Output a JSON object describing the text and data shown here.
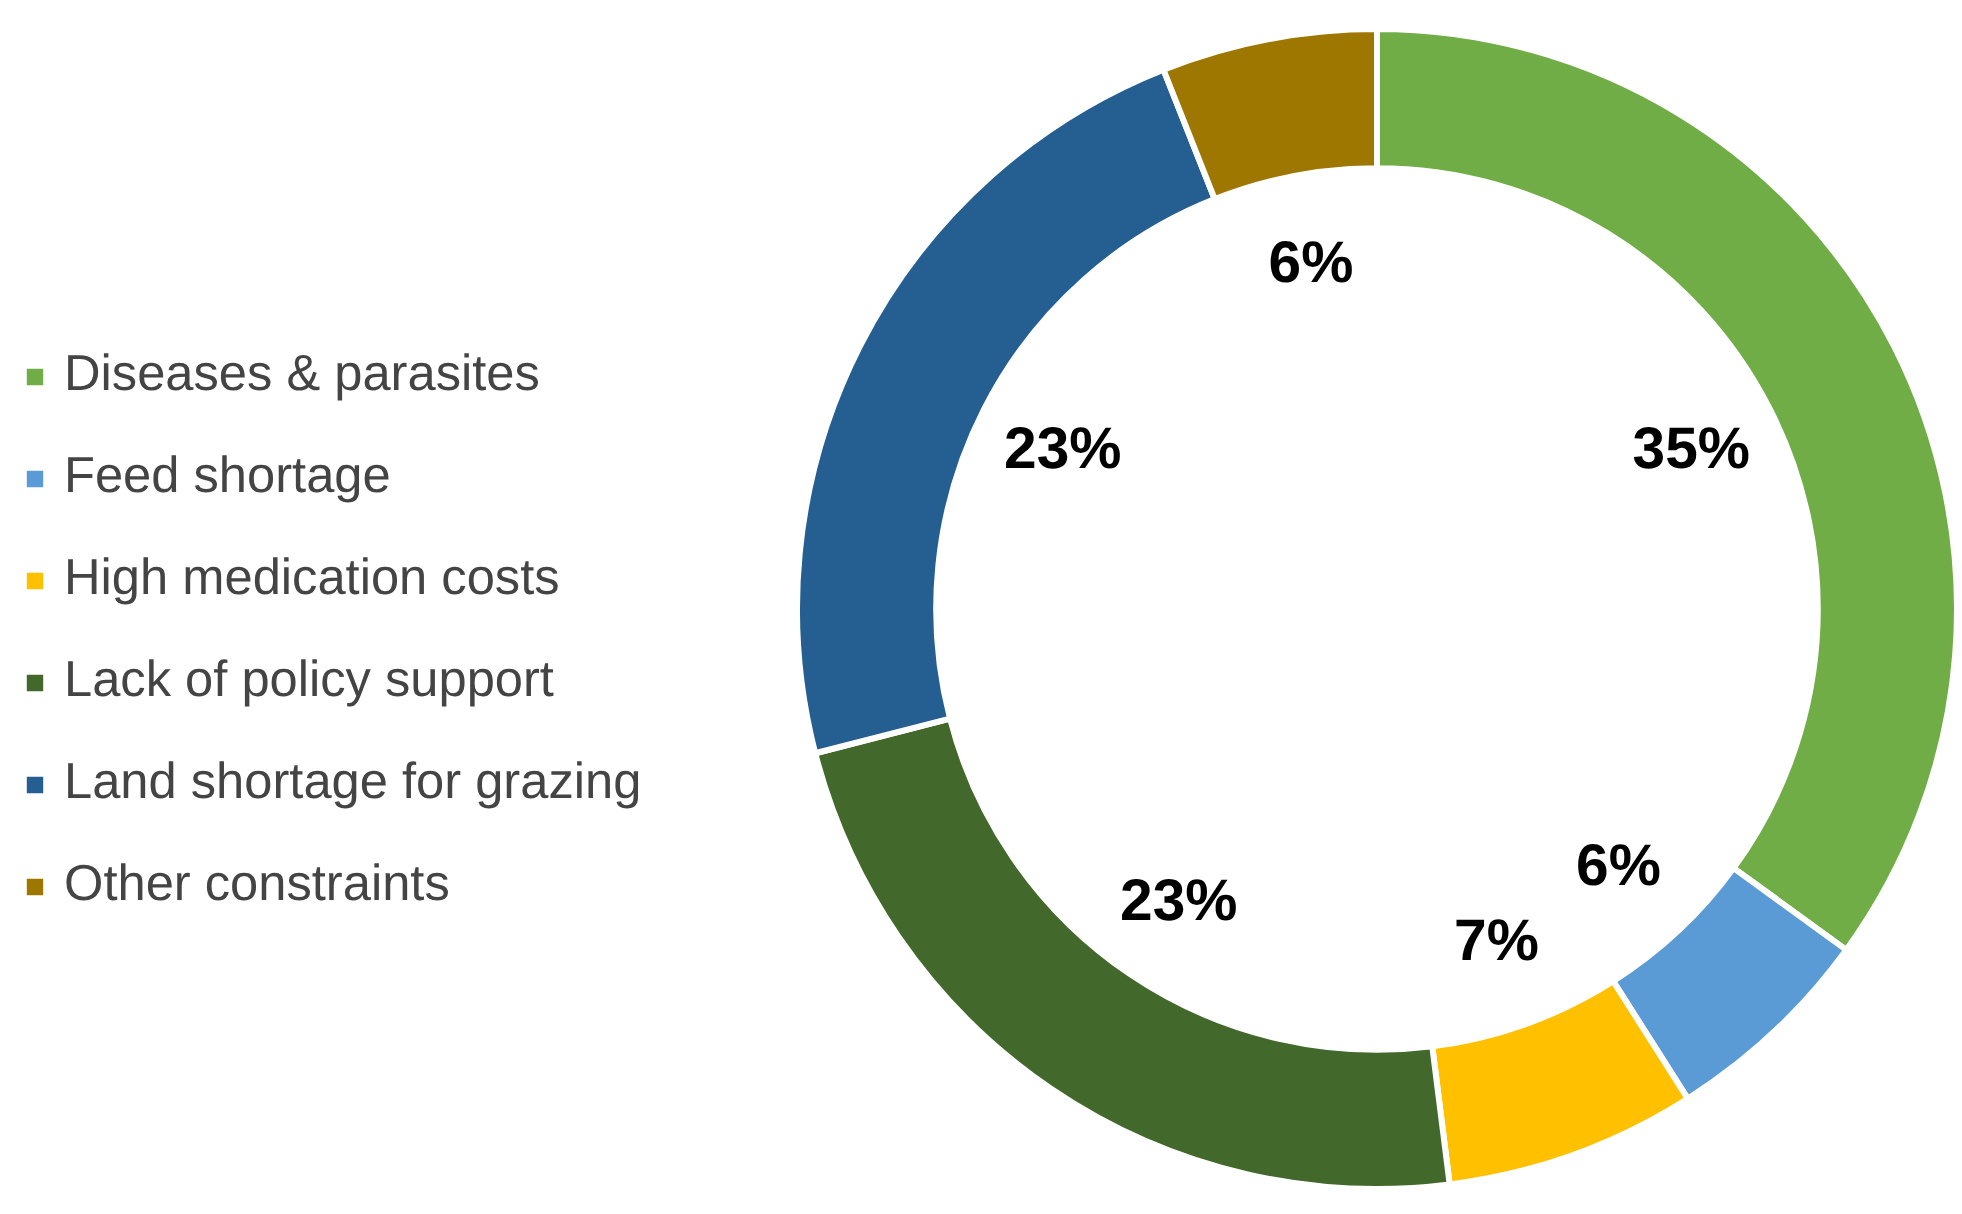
{
  "chart_data": {
    "type": "donut",
    "categories": [
      "Diseases & parasites",
      "Feed shortage",
      "High medication costs",
      "Lack of policy support",
      "Land shortage for grazing",
      "Other constraints"
    ],
    "values": [
      35,
      6,
      7,
      23,
      23,
      6
    ],
    "colors": [
      "#70ad47",
      "#5b9bd5",
      "#ffc000",
      "#43682b",
      "#255e91",
      "#9e7700"
    ],
    "value_labels": [
      "35%",
      "6%",
      "7%",
      "23%",
      "23%",
      "6%"
    ],
    "legend": "left"
  }
}
